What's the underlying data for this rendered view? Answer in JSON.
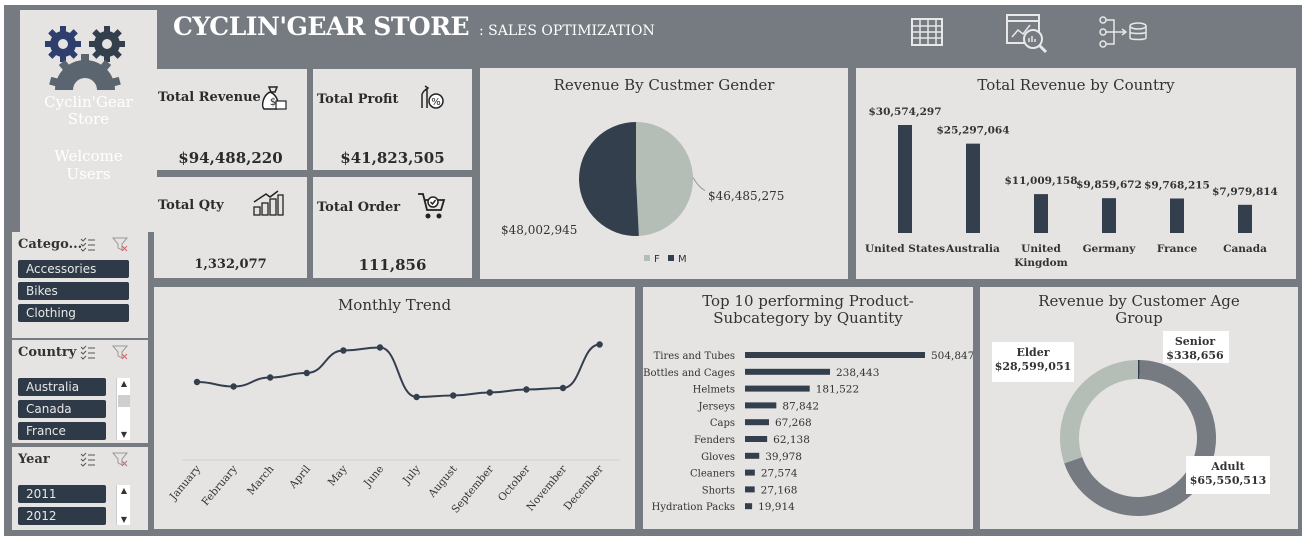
{
  "header": {
    "title": "CYCLIN'GEAR STORE",
    "subtitle": ": SALES OPTIMIZATION",
    "icons": [
      "table-icon",
      "report-search-icon",
      "database-flow-icon"
    ]
  },
  "brand": {
    "name_line1": "Cyclin'Gear",
    "name_line2": "Store",
    "welcome_line1": "Welcome",
    "welcome_line2": "Users"
  },
  "slicers": {
    "category": {
      "title": "Catego...",
      "items": [
        "Accessories",
        "Bikes",
        "Clothing"
      ]
    },
    "country": {
      "title": "Country",
      "items": [
        "Australia",
        "Canada",
        "France"
      ]
    },
    "year": {
      "title": "Year",
      "items": [
        "2011",
        "2012"
      ]
    }
  },
  "kpis": {
    "revenue": {
      "label": "Total Revenue",
      "value": "$94,488,220"
    },
    "profit": {
      "label": "Total Profit",
      "value": "$41,823,505"
    },
    "qty": {
      "label": "Total Qty",
      "value": "1,332,077"
    },
    "order": {
      "label": "Total Order",
      "value": "111,856"
    }
  },
  "chart_data": [
    {
      "type": "pie",
      "title": "Revenue By Custmer Gender",
      "categories": [
        "F",
        "M"
      ],
      "values": [
        46485275,
        48002945
      ],
      "data_labels": [
        "$46,485,275",
        "$48,002,945"
      ],
      "colors": [
        "#b4bdb6",
        "#343f4d"
      ],
      "legend": "bottom"
    },
    {
      "type": "bar",
      "title": "Total Revenue by Country",
      "categories": [
        "United States",
        "Australia",
        "United Kingdom",
        "Germany",
        "France",
        "Canada"
      ],
      "values": [
        30574297,
        25297064,
        11009158,
        9859672,
        9768215,
        7979814
      ],
      "data_labels": [
        "$30,574,297",
        "$25,297,064",
        "$11,009,158",
        "$9,859,672",
        "$9,768,215",
        "$7,979,814"
      ],
      "color": "#343f4d"
    },
    {
      "type": "line",
      "title": "Monthly Trend",
      "categories": [
        "January",
        "February",
        "March",
        "April",
        "May",
        "June",
        "July",
        "August",
        "September",
        "October",
        "November",
        "December"
      ],
      "values": [
        7500000,
        7200000,
        7800000,
        8100000,
        9600000,
        9800000,
        6500000,
        6600000,
        6800000,
        7000000,
        7100000,
        10000000
      ],
      "color": "#343f4d"
    },
    {
      "type": "bar",
      "orientation": "horizontal",
      "title": "Top 10 performing Product-Subcategory by Quantity",
      "categories": [
        "Tires and Tubes",
        "Bottles and Cages",
        "Helmets",
        "Jerseys",
        "Caps",
        "Fenders",
        "Gloves",
        "Cleaners",
        "Shorts",
        "Hydration Packs"
      ],
      "values": [
        504847,
        238443,
        181522,
        87842,
        67268,
        62138,
        39978,
        27574,
        27168,
        19914
      ],
      "data_labels": [
        "504,847",
        "238,443",
        "181,522",
        "87,842",
        "67,268",
        "62,138",
        "39,978",
        "27,574",
        "27,168",
        "19,914"
      ],
      "color": "#343f4d"
    },
    {
      "type": "pie",
      "subtype": "donut",
      "title": "Revenue by Customer Age Group",
      "categories": [
        "Senior",
        "Adult",
        "Elder"
      ],
      "values": [
        338656,
        65550513,
        28599051
      ],
      "data_labels": [
        "$338,656",
        "$65,550,513",
        "$28,599,051"
      ],
      "colors": [
        "#343f4d",
        "#757b80",
        "#b4bdb6"
      ]
    }
  ]
}
